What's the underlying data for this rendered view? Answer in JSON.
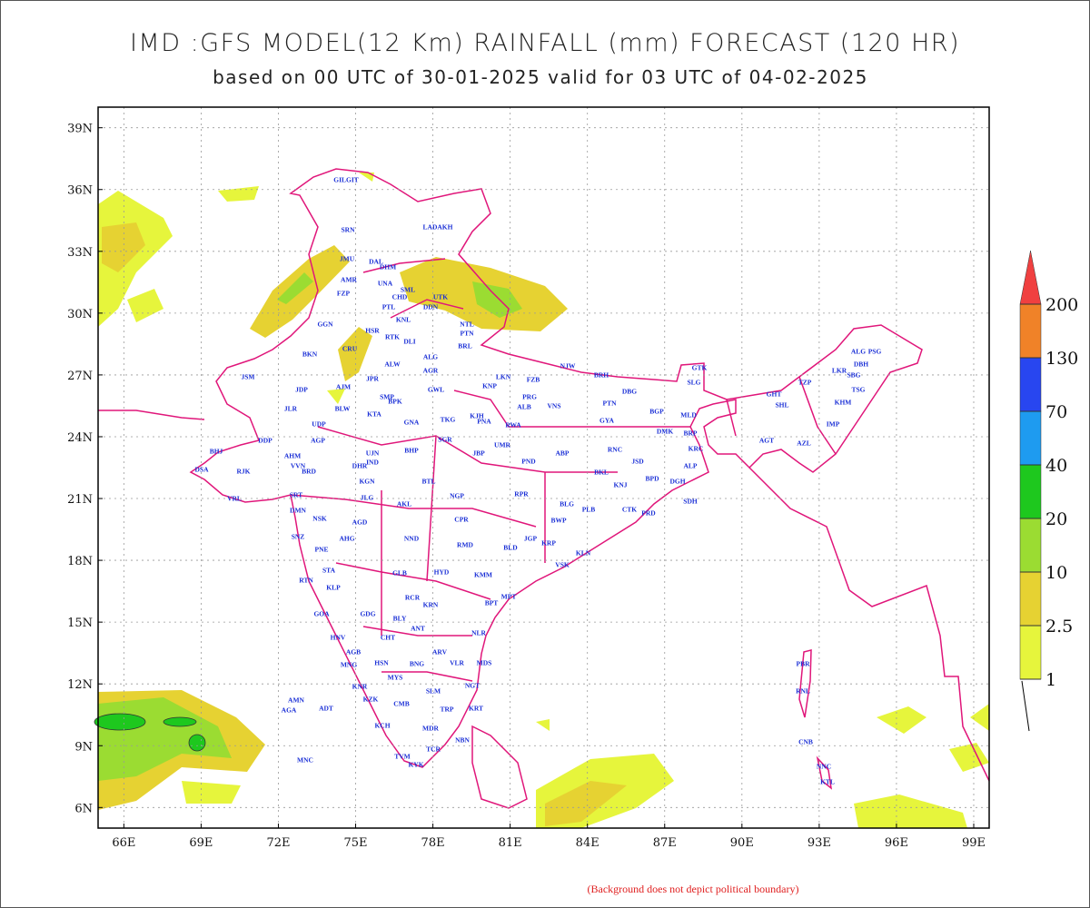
{
  "chart_data": {
    "type": "contour-map",
    "title": "IMD :GFS MODEL(12 Km) RAINFALL (mm) FORECAST (120 HR)",
    "subtitle": "based on 00 UTC of 30-01-2025 valid for 03 UTC of 04-02-2025",
    "xlim": [
      65,
      99.6
    ],
    "ylim": [
      5,
      40
    ],
    "xticks": [
      {
        "value": 66,
        "label": "66E"
      },
      {
        "value": 69,
        "label": "69E"
      },
      {
        "value": 72,
        "label": "72E"
      },
      {
        "value": 75,
        "label": "75E"
      },
      {
        "value": 78,
        "label": "78E"
      },
      {
        "value": 81,
        "label": "81E"
      },
      {
        "value": 84,
        "label": "84E"
      },
      {
        "value": 87,
        "label": "87E"
      },
      {
        "value": 90,
        "label": "90E"
      },
      {
        "value": 93,
        "label": "93E"
      },
      {
        "value": 96,
        "label": "96E"
      },
      {
        "value": 99,
        "label": "99E"
      }
    ],
    "yticks": [
      {
        "value": 6,
        "label": "6N"
      },
      {
        "value": 9,
        "label": "9N"
      },
      {
        "value": 12,
        "label": "12N"
      },
      {
        "value": 15,
        "label": "15N"
      },
      {
        "value": 18,
        "label": "18N"
      },
      {
        "value": 21,
        "label": "21N"
      },
      {
        "value": 24,
        "label": "24N"
      },
      {
        "value": 27,
        "label": "27N"
      },
      {
        "value": 30,
        "label": "30N"
      },
      {
        "value": 33,
        "label": "33N"
      },
      {
        "value": 36,
        "label": "36N"
      },
      {
        "value": 39,
        "label": "39N"
      }
    ],
    "grid": true,
    "colorbar": {
      "levels": [
        1,
        2.5,
        10,
        20,
        40,
        70,
        130,
        200
      ],
      "colors": [
        "#e6f53c",
        "#e6d232",
        "#9bdc32",
        "#1ec81e",
        "#1e9bf0",
        "#2846f0",
        "#f08228",
        "#f04040"
      ]
    },
    "stations": [
      "GILGIT",
      "SRN",
      "LADAKH",
      "JMU",
      "DAL",
      "DHM",
      "AMR",
      "UNA",
      "SML",
      "FZP",
      "CHD",
      "UTK",
      "PTL",
      "DDN",
      "KNL",
      "NTL",
      "GGN",
      "HSR",
      "PTN",
      "RTK",
      "DLI",
      "BRL",
      "BKN",
      "CRU",
      "ALG",
      "ALW",
      "AGR",
      "JSM",
      "JPR",
      "NJW",
      "BRH",
      "GTK",
      "LKN",
      "FZB",
      "KNP",
      "GWL",
      "JDP",
      "AJM",
      "SMP",
      "BPK",
      "PRG",
      "ALB",
      "VNS",
      "DBG",
      "SLG",
      "PTN",
      "JLR",
      "BLW",
      "KTA",
      "BGP",
      "MLD",
      "KJH",
      "GYA",
      "PNA",
      "TKG",
      "RWA",
      "GNA",
      "UDP",
      "DMK",
      "BRP",
      "BHJ",
      "DDP",
      "AGP",
      "AHM",
      "UJN",
      "IND",
      "BHP",
      "SGR",
      "JBP",
      "UMR",
      "ABP",
      "RNC",
      "KRC",
      "DSA",
      "RJK",
      "VVN",
      "BRD",
      "DHR",
      "PND",
      "JSD",
      "ALP",
      "BKL",
      "BPD",
      "DGH",
      "KGN",
      "BTL",
      "KNJ",
      "VRL",
      "SRT",
      "JLG",
      "AKL",
      "NGP",
      "RPR",
      "BLG",
      "PLB",
      "CTK",
      "PRD",
      "SDH",
      "DMN",
      "NSK",
      "AGD",
      "CPR",
      "BWP",
      "AHG",
      "NND",
      "SNZ",
      "JGP",
      "KRP",
      "RMD",
      "BLD",
      "PNE",
      "KLN",
      "HYD",
      "GLB",
      "VSK",
      "STA",
      "KMM",
      "RTN",
      "KLP",
      "RCR",
      "MPT",
      "BPT",
      "KRN",
      "GOA",
      "GDG",
      "BLY",
      "ANT",
      "HNV",
      "CHT",
      "NLR",
      "ARV",
      "AGB",
      "VLR",
      "MDS",
      "HSN",
      "BNG",
      "MNG",
      "MYS",
      "KNR",
      "SLM",
      "NGT",
      "KZK",
      "CMB",
      "AMN",
      "AGA",
      "ADT",
      "TRP",
      "KRT",
      "KCH",
      "MDR",
      "TCR",
      "NBN",
      "MNC",
      "TVM",
      "KYK",
      "PBR",
      "RNL",
      "CNB",
      "NNC",
      "KTL",
      "TZP",
      "LKR",
      "ALG",
      "PSG",
      "DBH",
      "SBG",
      "TSG",
      "GHT",
      "SHL",
      "KHM",
      "IMP",
      "AGT",
      "AZL"
    ],
    "note": "(Background does not depict political boundary)"
  }
}
